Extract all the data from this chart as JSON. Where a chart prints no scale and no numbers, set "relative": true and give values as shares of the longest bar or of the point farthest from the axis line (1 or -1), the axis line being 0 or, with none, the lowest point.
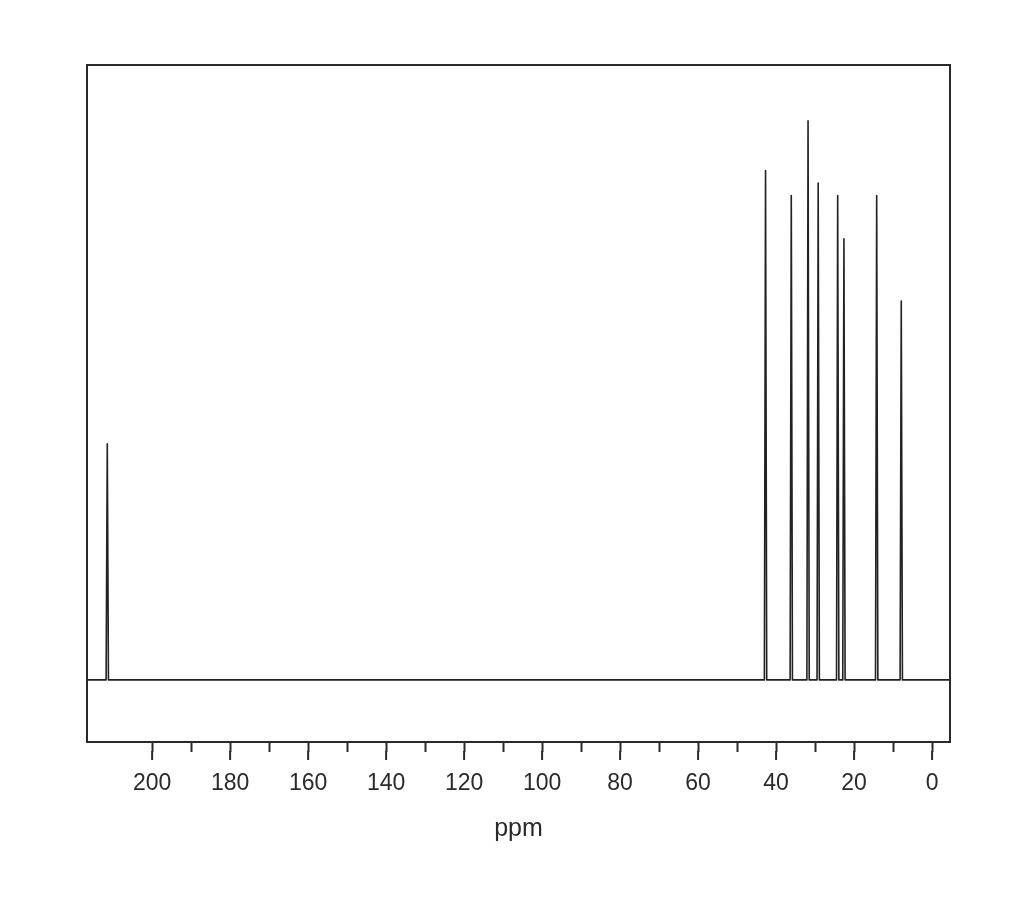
{
  "chart_data": {
    "type": "line",
    "xlabel": "ppm",
    "relative": true,
    "marker": "none",
    "line_style": "solid",
    "x": [
      216.7,
      211.8,
      211.5,
      211.2,
      43.0,
      42.7,
      42.4,
      36.4,
      36.1,
      35.8,
      32.1,
      31.8,
      31.5,
      29.5,
      29.2,
      28.9,
      24.5,
      24.2,
      23.9,
      22.9,
      22.6,
      22.3,
      14.5,
      14.2,
      13.9,
      8.2,
      7.9,
      7.6,
      -4.6
    ],
    "series": [
      {
        "color": "#222222",
        "values": [
          0.1,
          0.1,
          0.48,
          0.1,
          0.1,
          0.92,
          0.1,
          0.1,
          0.88,
          0.1,
          0.1,
          1,
          0.1,
          0.1,
          0.9,
          0.1,
          0.1,
          0.88,
          0.1,
          0.1,
          0.81,
          0.1,
          0.1,
          0.88,
          0.1,
          0.1,
          0.71,
          0.1,
          0.1
        ]
      }
    ],
    "xlim": [
      216.7,
      -4.6
    ],
    "xticks": [
      200,
      {
        "value": 190,
        "label": null
      },
      180,
      {
        "value": 170,
        "label": null
      },
      160,
      {
        "value": 150,
        "label": null
      },
      140,
      {
        "value": 130,
        "label": null
      },
      120,
      {
        "value": 110,
        "label": null
      },
      100,
      {
        "value": 90,
        "label": null
      },
      80,
      {
        "value": 70,
        "label": null
      },
      60,
      {
        "value": 50,
        "label": null
      },
      40,
      {
        "value": 30,
        "label": null
      },
      20,
      {
        "value": 10,
        "label": null
      },
      0
    ]
  }
}
